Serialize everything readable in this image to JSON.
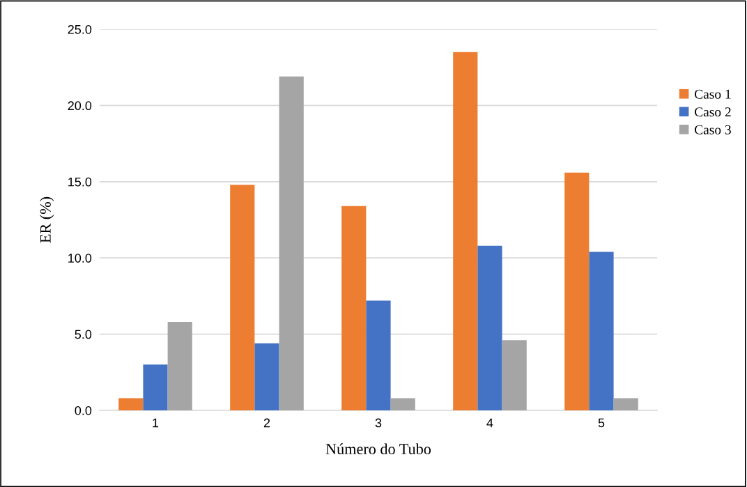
{
  "chart_data": {
    "type": "bar",
    "xlabel": "Número do Tubo",
    "ylabel": "ER (%)",
    "categories": [
      "1",
      "2",
      "3",
      "4",
      "5"
    ],
    "series": [
      {
        "name": "Caso 1",
        "color": "#ed7d31",
        "values": [
          0.8,
          14.8,
          13.4,
          23.5,
          15.6
        ]
      },
      {
        "name": "Caso 2",
        "color": "#4472c4",
        "values": [
          3.0,
          4.4,
          7.2,
          10.8,
          10.4
        ]
      },
      {
        "name": "Caso 3",
        "color": "#a5a5a5",
        "values": [
          5.8,
          21.9,
          0.8,
          4.6,
          0.8
        ]
      }
    ],
    "ylim": [
      0,
      25
    ],
    "yticks": [
      {
        "value": 0,
        "label": "0.0"
      },
      {
        "value": 5,
        "label": "5.0"
      },
      {
        "value": 10,
        "label": "10.0"
      },
      {
        "value": 15,
        "label": "15.0"
      },
      {
        "value": 20,
        "label": "20.0"
      },
      {
        "value": 25,
        "label": "25.0"
      }
    ],
    "grid": "y",
    "legend": "right"
  }
}
